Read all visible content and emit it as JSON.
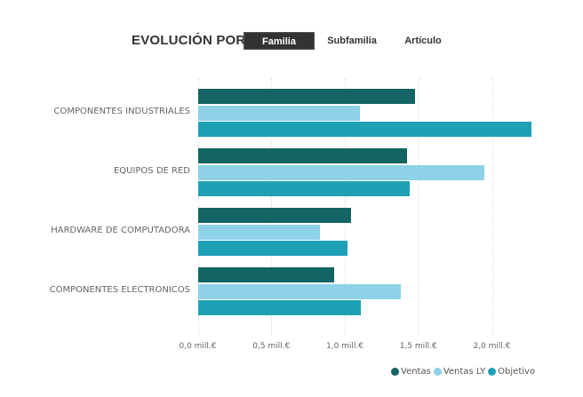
{
  "header": {
    "title": "EVOLUCIÓN POR",
    "segments": [
      {
        "label": "Familia",
        "active": true
      },
      {
        "label": "Subfamilia",
        "active": false
      },
      {
        "label": "Artículo",
        "active": false
      }
    ]
  },
  "colors": {
    "ventas": "#136462",
    "ventas_ly": "#8ed2e8",
    "objetivo": "#1ea1b5"
  },
  "legend": [
    {
      "label": "Ventas",
      "color": "#136462"
    },
    {
      "label": "Ventas LY",
      "color": "#8ed2e8"
    },
    {
      "label": "Objetivo",
      "color": "#1ea1b5"
    }
  ],
  "chart_data": {
    "type": "bar",
    "orientation": "horizontal",
    "title": "EVOLUCIÓN POR Familia",
    "categories": [
      "COMPONENTES INDUSTRIALES",
      "EQUIPOS DE RED",
      "HARDWARE DE COMPUTADORA",
      "COMPONENTES ELECTRONICOS"
    ],
    "series": [
      {
        "name": "Ventas",
        "values": [
          1.48,
          1.42,
          1.04,
          0.93
        ]
      },
      {
        "name": "Ventas LY",
        "values": [
          1.1,
          1.95,
          0.83,
          1.38
        ]
      },
      {
        "name": "Objetivo",
        "values": [
          2.27,
          1.44,
          1.02,
          1.11
        ]
      }
    ],
    "xlabel": "",
    "ylabel": "",
    "unit": "mill.€",
    "xticks": [
      "0,0 mill.€",
      "0,5 mill.€",
      "1,0 mill.€",
      "1,5 mill.€",
      "2,0 mill.€"
    ],
    "xtick_values": [
      0,
      0.5,
      1.0,
      1.5,
      2.0
    ],
    "xlim": [
      0,
      2.3
    ],
    "grid": true,
    "legend_position": "bottom-right"
  }
}
